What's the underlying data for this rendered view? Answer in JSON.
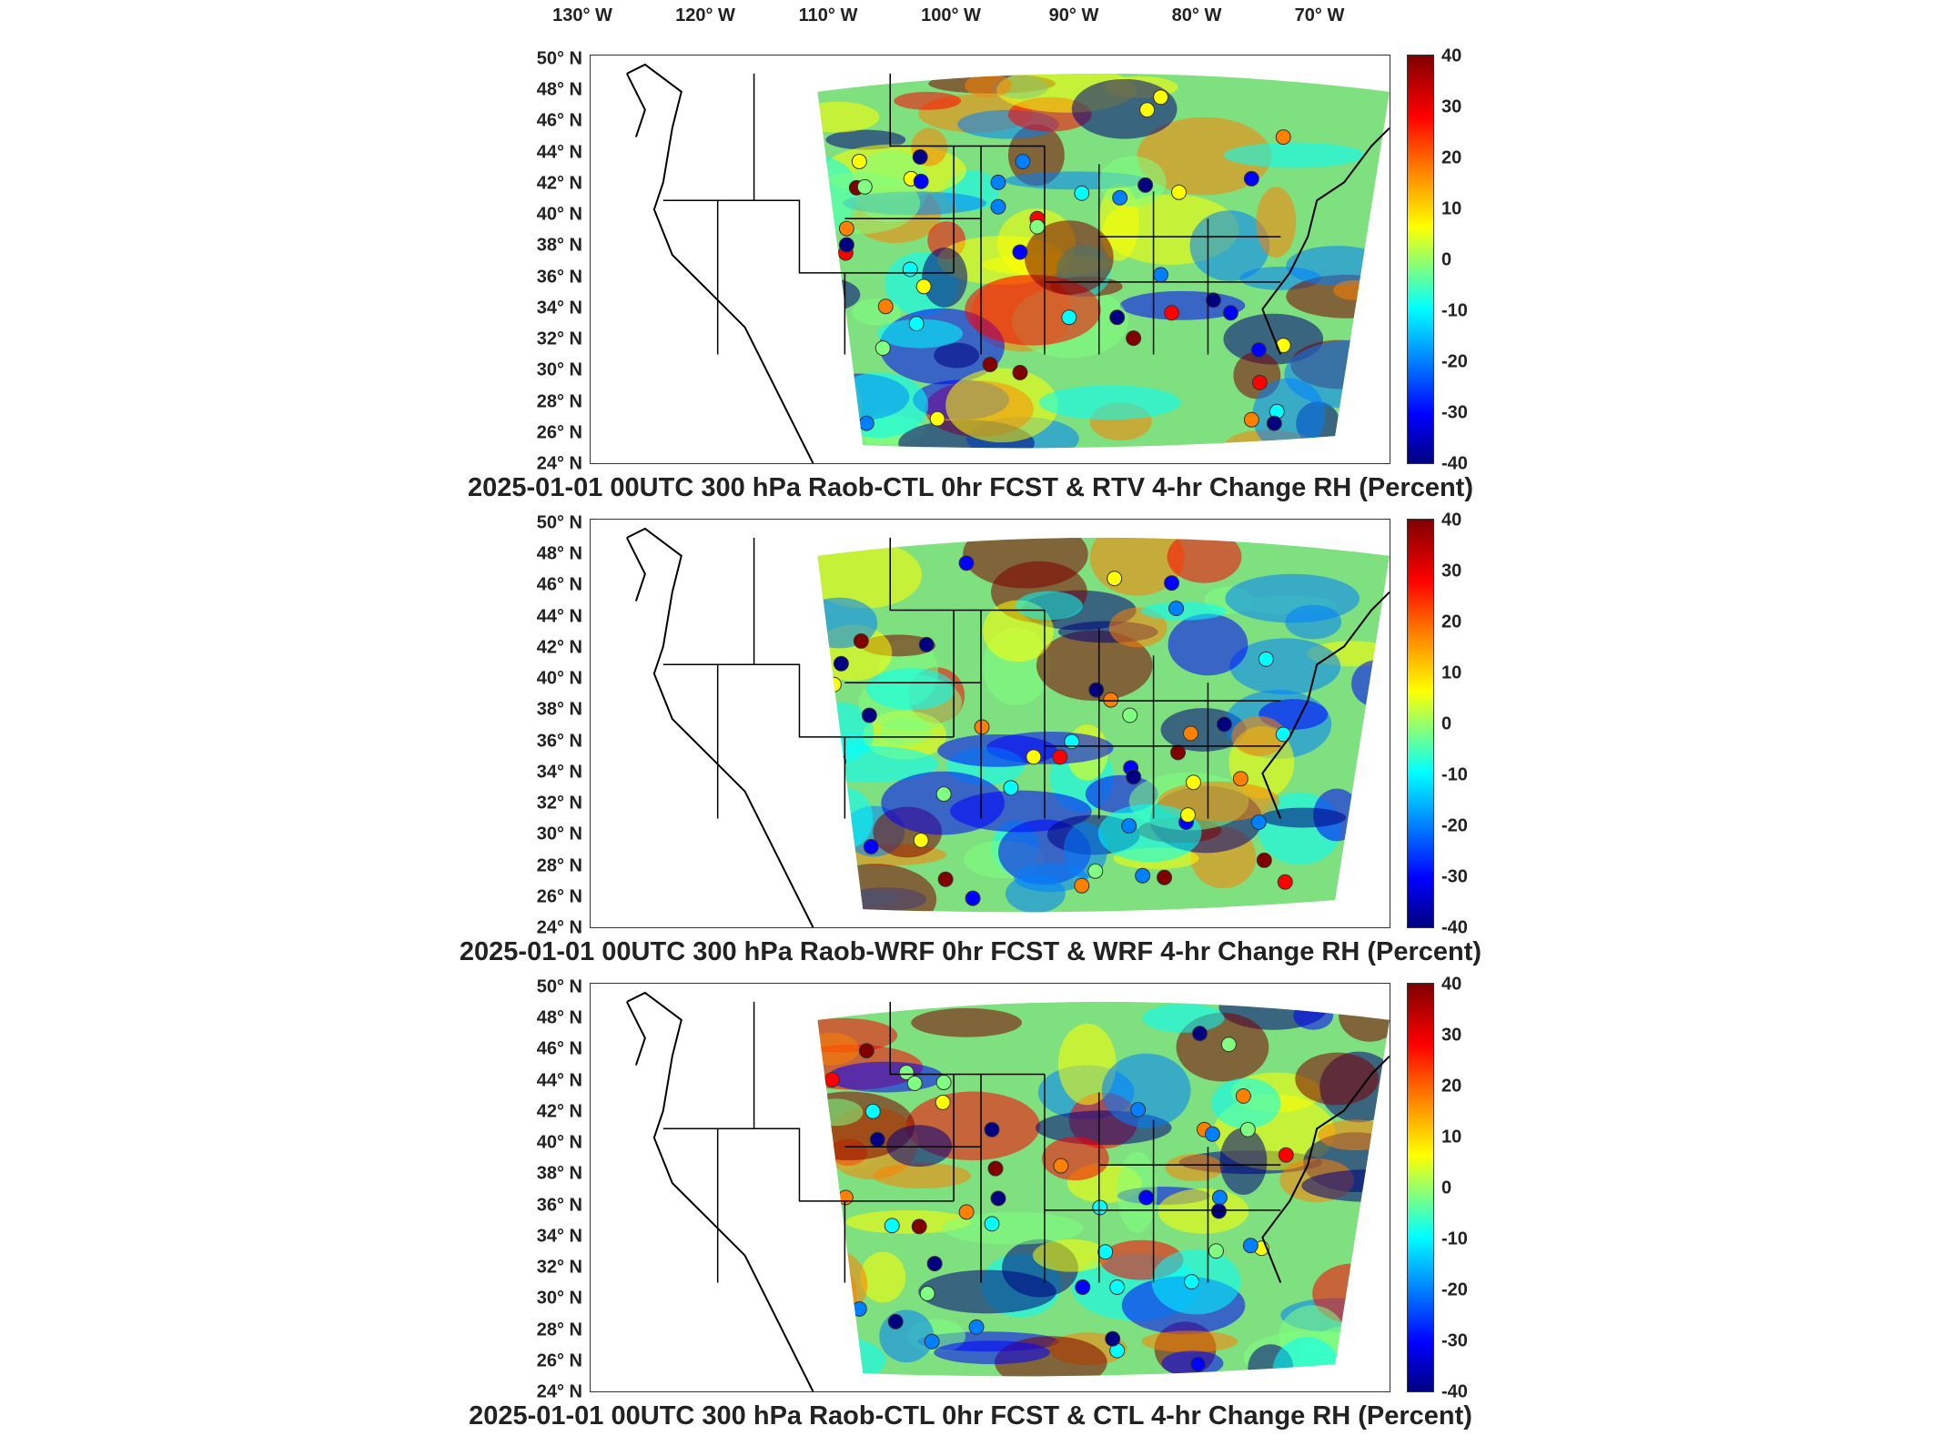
{
  "longitude_labels": [
    "130° W",
    "120° W",
    "110° W",
    "100° W",
    "90° W",
    "80° W",
    "70° W"
  ],
  "latitude_labels": [
    "50° N",
    "48° N",
    "46° N",
    "44° N",
    "42° N",
    "40° N",
    "38° N",
    "36° N",
    "34° N",
    "32° N",
    "30° N",
    "28° N",
    "26° N",
    "24° N"
  ],
  "colorbar_ticks": [
    "40",
    "30",
    "20",
    "10",
    "0",
    "-10",
    "-20",
    "-30",
    "-40"
  ],
  "panels": [
    {
      "title": "2025-01-01 00UTC 300 hPa Raob-CTL 0hr FCST & RTV 4-hr Change RH (Percent)"
    },
    {
      "title": "2025-01-01 00UTC 300 hPa Raob-WRF 0hr FCST & WRF 4-hr Change RH (Percent)"
    },
    {
      "title": "2025-01-01 00UTC 300 hPa Raob-CTL 0hr FCST & CTL 4-hr Change RH (Percent)"
    }
  ],
  "colors": {
    "scale": [
      "#800000",
      "#ff0000",
      "#ff8000",
      "#ffff00",
      "#80ff80",
      "#00ffff",
      "#0080ff",
      "#0000ff",
      "#000080"
    ]
  }
}
